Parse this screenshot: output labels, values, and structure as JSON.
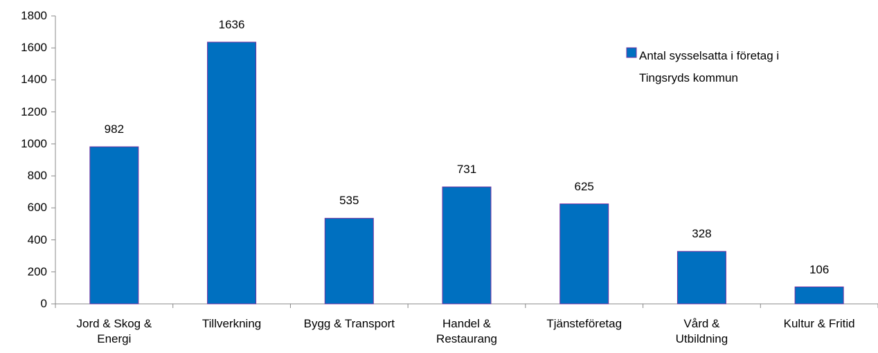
{
  "chart_data": {
    "type": "bar",
    "categories": [
      "Jord & Skog &\nEnergi",
      "Tillverkning",
      "Bygg & Transport",
      "Handel &\nRestaurang",
      "Tjänsteföretag",
      "Vård &\nUtbildning",
      "Kultur & Fritid"
    ],
    "series": [
      {
        "name": "Antal sysselsatta i företag i Tingsryds kommun",
        "color": "#0070c0",
        "values": [
          982,
          1636,
          535,
          731,
          625,
          328,
          106
        ]
      }
    ],
    "ylim": [
      0,
      1800
    ],
    "yticks": [
      0,
      200,
      400,
      600,
      800,
      1000,
      1200,
      1400,
      1600,
      1800
    ],
    "grid": false,
    "legend": "top-right"
  }
}
